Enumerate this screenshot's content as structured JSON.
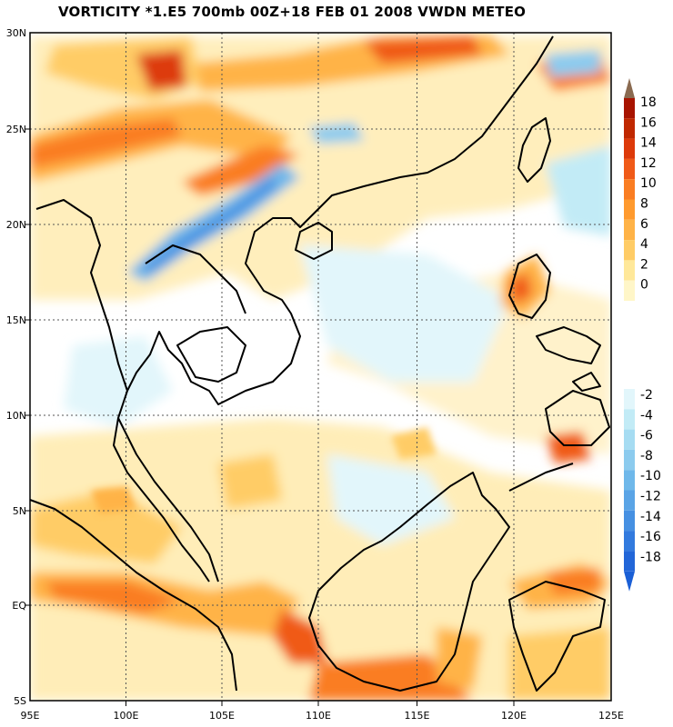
{
  "title": "VORTICITY *1.E5 700mb 00Z+18 FEB 01 2008 VWDN METEO",
  "map": {
    "lat_labels": [
      "30N",
      "25N",
      "20N",
      "15N",
      "10N",
      "5N",
      "EQ",
      "5S"
    ],
    "lon_labels": [
      "95E",
      "100E",
      "105E",
      "110E",
      "115E",
      "120E",
      "125E"
    ],
    "grid": "dotted"
  },
  "colorbar": {
    "positive": [
      {
        "label": "18",
        "color": "#a81400"
      },
      {
        "label": "16",
        "color": "#c02800"
      },
      {
        "label": "14",
        "color": "#dd3a0a"
      },
      {
        "label": "12",
        "color": "#f05a18"
      },
      {
        "label": "10",
        "color": "#fa7d22"
      },
      {
        "label": "8",
        "color": "#ff9a2e"
      },
      {
        "label": "6",
        "color": "#ffb347"
      },
      {
        "label": "4",
        "color": "#ffcc66"
      },
      {
        "label": "2",
        "color": "#ffe89a"
      },
      {
        "label": "0",
        "color": "#fff6c8"
      }
    ],
    "negative": [
      {
        "label": "-2",
        "color": "#e2f6fb"
      },
      {
        "label": "-4",
        "color": "#c2ebf6"
      },
      {
        "label": "-6",
        "color": "#a6dcf2"
      },
      {
        "label": "-8",
        "color": "#8ccbee"
      },
      {
        "label": "-10",
        "color": "#6fb8ea"
      },
      {
        "label": "-12",
        "color": "#5aa4e6"
      },
      {
        "label": "-14",
        "color": "#4690e2"
      },
      {
        "label": "-16",
        "color": "#327ade"
      },
      {
        "label": "-18",
        "color": "#2266d8"
      }
    ],
    "top_arrow_color": "#8a6a50",
    "bottom_arrow_color": "#1a5fd6"
  }
}
